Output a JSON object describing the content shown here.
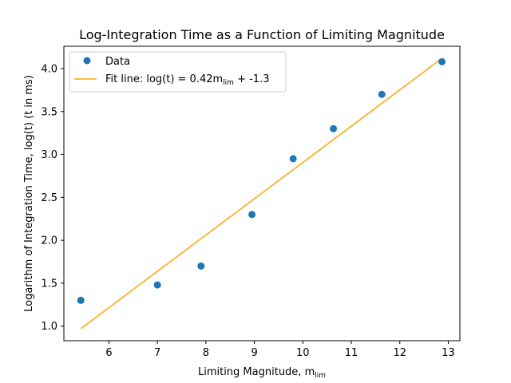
{
  "chart_data": {
    "type": "scatter",
    "title": "Log-Integration Time as a Function of Limiting Magnitude",
    "xlabel": "Limiting Magnitude, m",
    "xlabel_sub": "lim",
    "ylabel": "Logarithm of Integration Time, log(t) (t in ms)",
    "xlim": [
      5.07,
      13.24
    ],
    "ylim": [
      0.83,
      4.26
    ],
    "xticks": [
      6,
      7,
      8,
      9,
      10,
      11,
      12,
      13
    ],
    "yticks": [
      1.0,
      1.5,
      2.0,
      2.5,
      3.0,
      3.5,
      4.0
    ],
    "xtick_labels": [
      "6",
      "7",
      "8",
      "9",
      "10",
      "11",
      "12",
      "13"
    ],
    "ytick_labels": [
      "1.0",
      "1.5",
      "2.0",
      "2.5",
      "3.0",
      "3.5",
      "4.0"
    ],
    "grid": false,
    "legend_position": "top-left",
    "series": [
      {
        "name": "Data",
        "kind": "scatter",
        "color": "#1f77b4",
        "x": [
          5.42,
          7.0,
          7.9,
          8.95,
          9.8,
          10.63,
          11.63,
          12.87
        ],
        "y": [
          1.3,
          1.48,
          1.7,
          2.3,
          2.95,
          3.3,
          3.7,
          4.08
        ]
      },
      {
        "name": "Fit line: log(t) = 0.42m",
        "name_sub": "lim",
        "name_suffix": " + -1.3",
        "kind": "line",
        "color": "#ffa500",
        "x": [
          5.42,
          12.87
        ],
        "y": [
          0.97,
          4.12
        ]
      }
    ]
  }
}
